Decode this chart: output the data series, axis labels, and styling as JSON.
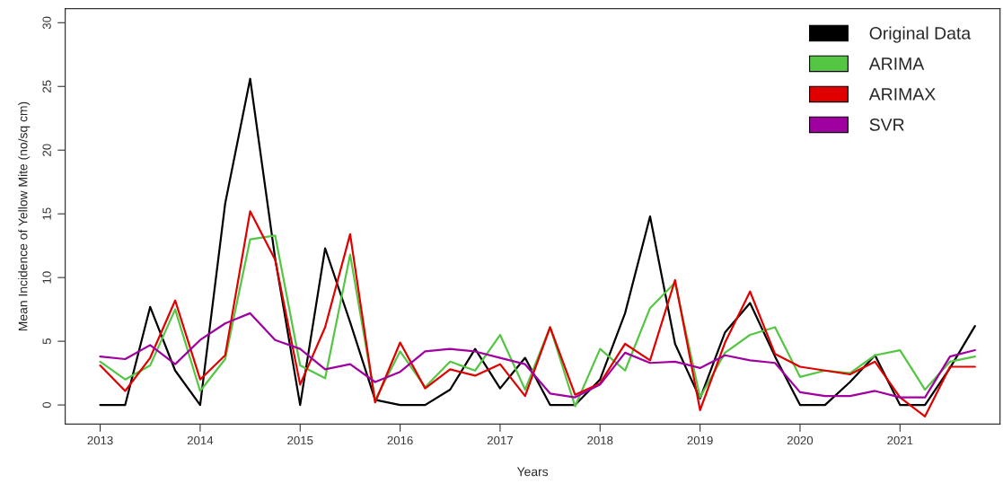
{
  "chart_data": {
    "type": "line",
    "xlabel": "Years",
    "ylabel": "Mean Incidence of Yellow Mite (no/sq cm)",
    "x": [
      2013,
      2013.25,
      2013.5,
      2013.75,
      2014,
      2014.25,
      2014.5,
      2014.75,
      2015,
      2015.25,
      2015.5,
      2015.75,
      2016,
      2016.25,
      2016.5,
      2016.75,
      2017,
      2017.25,
      2017.5,
      2017.75,
      2018,
      2018.25,
      2018.5,
      2018.75,
      2019,
      2019.25,
      2019.5,
      2019.75,
      2020,
      2020.25,
      2020.5,
      2020.75,
      2021,
      2021.25,
      2021.5,
      2021.75
    ],
    "xlim": [
      2012.65,
      2022.0
    ],
    "xticks": [
      2013,
      2014,
      2015,
      2016,
      2017,
      2018,
      2019,
      2020,
      2021
    ],
    "ylim": [
      -1.5,
      31.1
    ],
    "yticks": [
      0,
      5,
      10,
      15,
      20,
      25,
      30
    ],
    "grid": false,
    "legend": "top right",
    "line_style": "solid",
    "series": [
      {
        "name": "Original Data",
        "color": "#000000",
        "values": [
          0,
          0,
          7.7,
          2.7,
          0,
          15.8,
          25.6,
          11.5,
          0,
          12.3,
          6.5,
          0.4,
          0,
          0,
          1.2,
          4.4,
          1.3,
          3.7,
          0,
          0,
          2.0,
          7.2,
          14.8,
          4.8,
          0.5,
          5.7,
          8.0,
          3.8,
          0,
          0,
          1.8,
          3.9,
          0,
          0,
          2.9,
          6.2
        ]
      },
      {
        "name": "ARIMA",
        "color": "#55c644",
        "values": [
          3.4,
          2.0,
          3.1,
          7.5,
          1.1,
          3.6,
          13.0,
          13.3,
          3.1,
          2.1,
          11.8,
          0.4,
          4.2,
          1.4,
          3.4,
          2.7,
          5.5,
          1.2,
          6.1,
          -0.1,
          4.4,
          2.7,
          7.6,
          9.6,
          0.6,
          4.1,
          5.5,
          6.1,
          2.2,
          2.7,
          2.5,
          3.9,
          4.3,
          1.2,
          3.4,
          3.8
        ]
      },
      {
        "name": "ARIMAX",
        "color": "#e00000",
        "values": [
          3.1,
          1.1,
          3.7,
          8.2,
          2.0,
          3.9,
          15.2,
          11.4,
          1.6,
          6.1,
          13.4,
          0.2,
          4.9,
          1.3,
          2.8,
          2.3,
          3.2,
          0.7,
          6.1,
          0.8,
          1.7,
          4.8,
          3.5,
          9.8,
          -0.4,
          4.9,
          8.9,
          4.0,
          3.0,
          2.7,
          2.4,
          3.4,
          0.6,
          -0.9,
          3.0,
          3.0
        ]
      },
      {
        "name": "SVR",
        "color": "#a000a0",
        "values": [
          3.8,
          3.6,
          4.7,
          3.2,
          5.1,
          6.4,
          7.2,
          5.1,
          4.4,
          2.8,
          3.2,
          1.8,
          2.6,
          4.2,
          4.4,
          4.2,
          3.7,
          3.2,
          0.9,
          0.6,
          1.6,
          4.1,
          3.3,
          3.4,
          2.9,
          3.9,
          3.5,
          3.3,
          1.0,
          0.7,
          0.7,
          1.1,
          0.6,
          0.6,
          3.8,
          4.3
        ]
      }
    ]
  }
}
